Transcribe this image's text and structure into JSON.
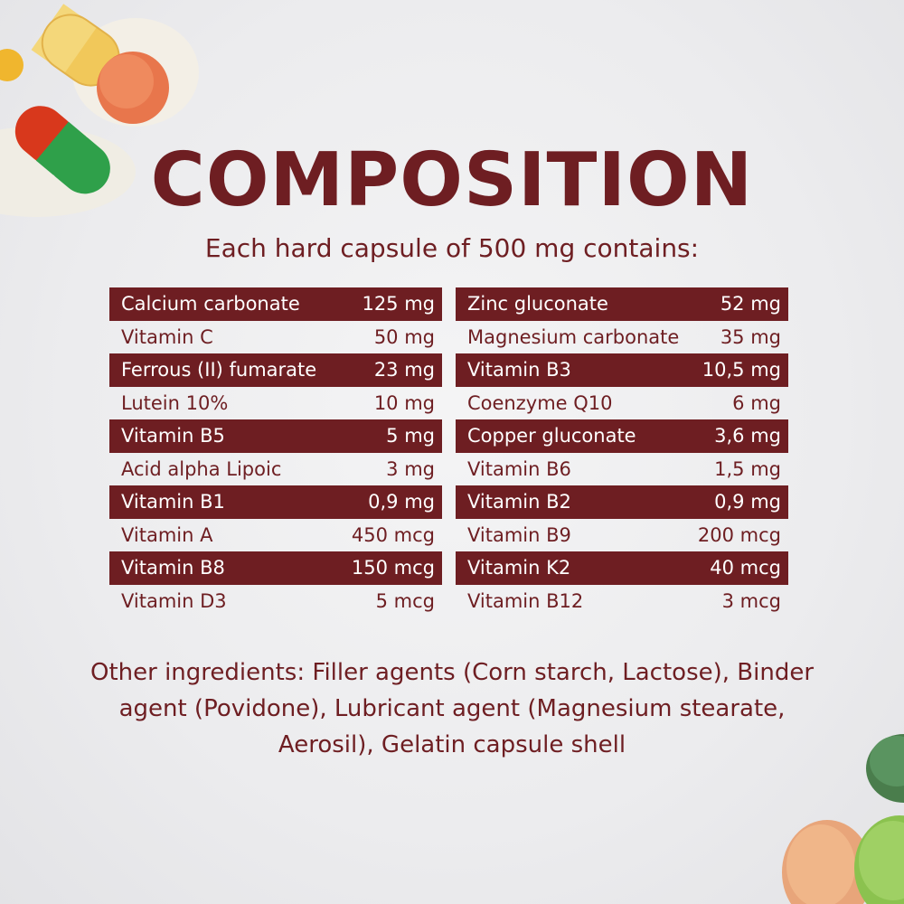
{
  "title": "COMPOSITION",
  "subtitle": "Each hard capsule of 500 mg contains:",
  "colors": {
    "accent": "#6e1e22",
    "bg": "#ececee"
  },
  "left_table": [
    {
      "name": "Calcium carbonate",
      "amount": "125 mg"
    },
    {
      "name": "Vitamin C",
      "amount": "50 mg"
    },
    {
      "name": "Ferrous (II) fumarate",
      "amount": "23 mg"
    },
    {
      "name": "Lutein 10%",
      "amount": "10 mg"
    },
    {
      "name": "Vitamin B5",
      "amount": "5 mg"
    },
    {
      "name": "Acid alpha Lipoic",
      "amount": "3 mg"
    },
    {
      "name": "Vitamin B1",
      "amount": "0,9 mg"
    },
    {
      "name": "Vitamin A",
      "amount": "450 mcg"
    },
    {
      "name": "Vitamin B8",
      "amount": "150 mcg"
    },
    {
      "name": "Vitamin D3",
      "amount": "5 mcg"
    }
  ],
  "right_table": [
    {
      "name": "Zinc gluconate",
      "amount": "52 mg"
    },
    {
      "name": "Magnesium carbonate",
      "amount": "35 mg"
    },
    {
      "name": "Vitamin B3",
      "amount": "10,5 mg"
    },
    {
      "name": "Coenzyme Q10",
      "amount": "6 mg"
    },
    {
      "name": "Copper gluconate",
      "amount": "3,6 mg"
    },
    {
      "name": "Vitamin B6",
      "amount": "1,5 mg"
    },
    {
      "name": "Vitamin B2",
      "amount": "0,9 mg"
    },
    {
      "name": "Vitamin B9",
      "amount": "200 mcg"
    },
    {
      "name": "Vitamin K2",
      "amount": "40 mcg"
    },
    {
      "name": "Vitamin B12",
      "amount": "3 mcg"
    }
  ],
  "other_ingredients": "Other ingredients: Filler agents (Corn starch, Lactose), Binder agent (Povidone), Lubricant agent (Magnesium stearate, Aerosil), Gelatin capsule shell"
}
